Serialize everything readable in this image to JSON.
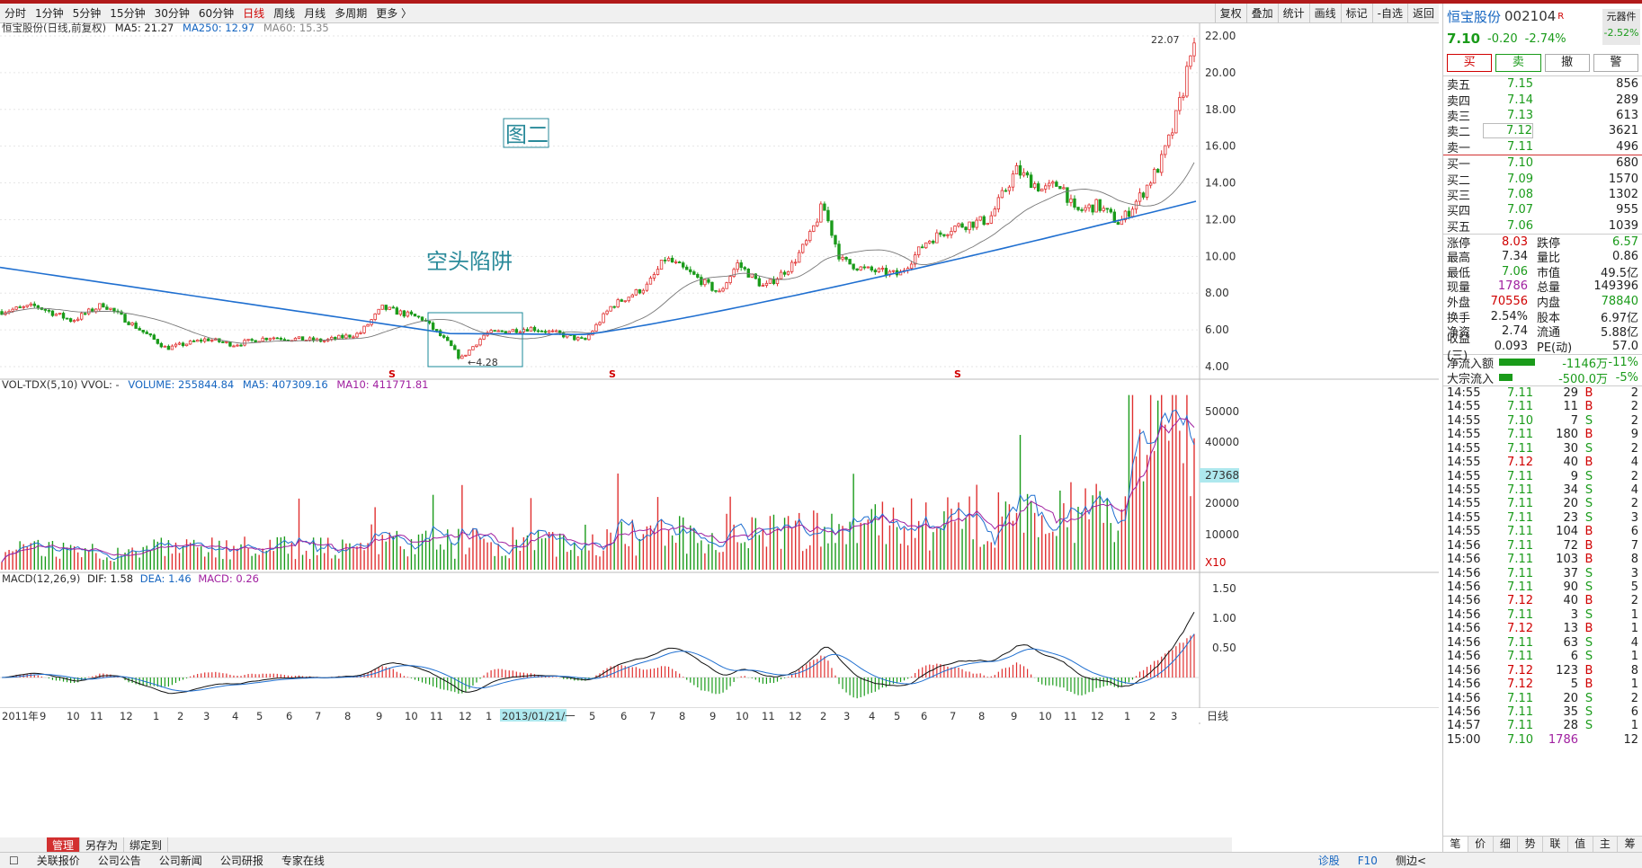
{
  "toolbar": {
    "periods": [
      "分时",
      "1分钟",
      "5分钟",
      "15分钟",
      "30分钟",
      "60分钟",
      "日线",
      "周线",
      "月线",
      "多周期",
      "更多 〉"
    ],
    "active_period": "日线",
    "tools": [
      "复权",
      "叠加",
      "统计",
      "画线",
      "标记",
      "-自选",
      "返回"
    ]
  },
  "main_legend": {
    "title": "恒宝股份(日线,前复权)",
    "ma5": "MA5: 21.27",
    "ma250": "MA250: 12.97",
    "ma60": "MA60: 15.35"
  },
  "vol_legend": {
    "title": "VOL-TDX(5,10) VVOL: -",
    "volume": "VOLUME: 255844.84",
    "ma5": "MA5: 407309.16",
    "ma10": "MA10: 411771.81"
  },
  "macd_legend": {
    "title": "MACD(12,26,9)",
    "dif": "DIF: 1.58",
    "dea": "DEA: 1.46",
    "macd": "MACD: 0.26"
  },
  "annotations": {
    "figure_label": "图二",
    "trap_label": "空头陷阱",
    "low_label": "4.28",
    "high_label": "22.07",
    "s_marker": "S"
  },
  "price_axis": [
    "22.00",
    "20.00",
    "18.00",
    "16.00",
    "14.00",
    "12.00",
    "10.00",
    "8.00",
    "6.00",
    "4.00"
  ],
  "vol_axis": [
    "50000",
    "40000",
    "27368",
    "20000",
    "10000",
    "X10"
  ],
  "macd_axis": [
    "1.50",
    "1.00",
    "0.50"
  ],
  "date_axis": [
    "2011年",
    "9",
    "10",
    "11",
    "12",
    "1",
    "2",
    "3",
    "4",
    "5",
    "6",
    "7",
    "8",
    "9",
    "10",
    "11",
    "12",
    "1",
    "2013/01/21/一",
    "5",
    "6",
    "7",
    "8",
    "9",
    "10",
    "11",
    "12",
    "2",
    "3",
    "4",
    "5",
    "6",
    "7",
    "8",
    "9",
    "10",
    "11",
    "12",
    "1",
    "2",
    "3"
  ],
  "date_axis_right": "日线",
  "subbar": [
    "管理",
    "另存为",
    "绑定到"
  ],
  "bottombar": {
    "left": [
      "关联报价",
      "公司公告",
      "公司新闻",
      "公司研报",
      "专家在线"
    ],
    "right": [
      "诊股",
      "F10",
      "侧边<"
    ]
  },
  "quote": {
    "name": "恒宝股份",
    "code": "002104",
    "badge_r": "R",
    "sector": "元器件",
    "sector_change": "-2.52%",
    "price": "7.10",
    "change": "-0.20",
    "change_pct": "-2.74%",
    "buttons": [
      "买",
      "卖",
      "撤",
      "警"
    ],
    "asks": [
      {
        "label": "卖五",
        "price": "7.15",
        "vol": "856"
      },
      {
        "label": "卖四",
        "price": "7.14",
        "vol": "289"
      },
      {
        "label": "卖三",
        "price": "7.13",
        "vol": "613"
      },
      {
        "label": "卖二",
        "price": "7.12",
        "vol": "3621"
      },
      {
        "label": "卖一",
        "price": "7.11",
        "vol": "496"
      }
    ],
    "bids": [
      {
        "label": "买一",
        "price": "7.10",
        "vol": "680"
      },
      {
        "label": "买二",
        "price": "7.09",
        "vol": "1570"
      },
      {
        "label": "买三",
        "price": "7.08",
        "vol": "1302"
      },
      {
        "label": "买四",
        "price": "7.07",
        "vol": "955"
      },
      {
        "label": "买五",
        "price": "7.06",
        "vol": "1039"
      }
    ],
    "stats": [
      [
        "涨停",
        "8.03",
        "跌停",
        "6.57"
      ],
      [
        "最高",
        "7.34",
        "量比",
        "0.86"
      ],
      [
        "最低",
        "7.06",
        "市值",
        "49.5亿"
      ],
      [
        "现量",
        "1786",
        "总量",
        "149396"
      ],
      [
        "外盘",
        "70556",
        "内盘",
        "78840"
      ],
      [
        "换手",
        "2.54%",
        "股本",
        "6.97亿"
      ],
      [
        "净资",
        "2.74",
        "流通",
        "5.88亿"
      ],
      [
        "收益(三)",
        "0.093",
        "PE(动)",
        "57.0"
      ]
    ],
    "flows": [
      {
        "label": "净流入额",
        "value": "-1146万",
        "pct": "-11%",
        "bar": 0.9
      },
      {
        "label": "大宗流入",
        "value": "-500.0万",
        "pct": "-5%",
        "bar": 0.35
      }
    ],
    "ticks": [
      [
        "14:55",
        "7.11",
        "29",
        "B",
        "2"
      ],
      [
        "14:55",
        "7.11",
        "11",
        "B",
        "2"
      ],
      [
        "14:55",
        "7.10",
        "7",
        "S",
        "2"
      ],
      [
        "14:55",
        "7.11",
        "180",
        "B",
        "9"
      ],
      [
        "14:55",
        "7.11",
        "30",
        "S",
        "2"
      ],
      [
        "14:55",
        "7.12",
        "40",
        "B",
        "4"
      ],
      [
        "14:55",
        "7.11",
        "9",
        "S",
        "2"
      ],
      [
        "14:55",
        "7.11",
        "34",
        "S",
        "4"
      ],
      [
        "14:55",
        "7.11",
        "20",
        "S",
        "2"
      ],
      [
        "14:55",
        "7.11",
        "23",
        "S",
        "3"
      ],
      [
        "14:55",
        "7.11",
        "104",
        "B",
        "6"
      ],
      [
        "14:56",
        "7.11",
        "72",
        "B",
        "7"
      ],
      [
        "14:56",
        "7.11",
        "103",
        "B",
        "8"
      ],
      [
        "14:56",
        "7.11",
        "37",
        "S",
        "3"
      ],
      [
        "14:56",
        "7.11",
        "90",
        "S",
        "5"
      ],
      [
        "14:56",
        "7.12",
        "40",
        "B",
        "2"
      ],
      [
        "14:56",
        "7.11",
        "3",
        "S",
        "1"
      ],
      [
        "14:56",
        "7.12",
        "13",
        "B",
        "1"
      ],
      [
        "14:56",
        "7.11",
        "63",
        "S",
        "4"
      ],
      [
        "14:56",
        "7.11",
        "6",
        "S",
        "1"
      ],
      [
        "14:56",
        "7.12",
        "123",
        "B",
        "8"
      ],
      [
        "14:56",
        "7.12",
        "5",
        "B",
        "1"
      ],
      [
        "14:56",
        "7.11",
        "20",
        "S",
        "2"
      ],
      [
        "14:56",
        "7.11",
        "35",
        "S",
        "6"
      ],
      [
        "14:57",
        "7.11",
        "28",
        "S",
        "1"
      ],
      [
        "15:00",
        "7.10",
        "1786",
        "",
        "12"
      ]
    ],
    "footer": [
      "笔",
      "价",
      "细",
      "势",
      "联",
      "值",
      "主",
      "筹"
    ]
  }
}
